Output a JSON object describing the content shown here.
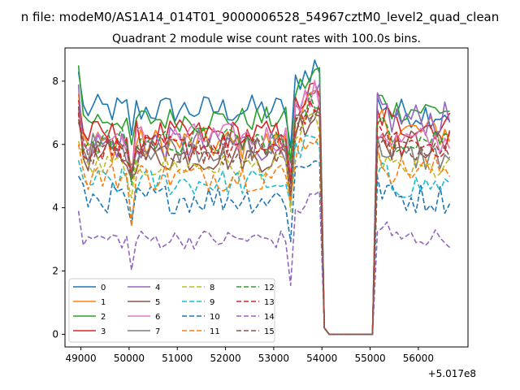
{
  "figure": {
    "suptitle": "n file: modeM0/AS1A14_014T01_9000006528_54967cztM0_level2_quad_clean",
    "title": "Quadrant 2 module wise count rates with 100.0s bins.",
    "offset_label": "+5.017e8"
  },
  "chart_data": {
    "type": "line",
    "title": "Quadrant 2 module wise count rates with 100.0s bins.",
    "xlabel": "",
    "ylabel": "",
    "x_offset": 501700000,
    "x_offset_label": "+5.017e8",
    "xlim": [
      48670,
      57030
    ],
    "ylim": [
      -0.4,
      9.05
    ],
    "xticks": [
      49000,
      50000,
      51000,
      52000,
      53000,
      54000,
      55000,
      56000
    ],
    "yticks": [
      0,
      2,
      4,
      6,
      8
    ],
    "grid": false,
    "legend_position": "lower-left",
    "legend_columns": 4,
    "x": {
      "start": 48950,
      "step": 100,
      "count": 78
    },
    "gap_values_x": [
      54050,
      54150,
      54250,
      54350,
      54450,
      54550,
      54650,
      54750,
      54850,
      54950,
      55050
    ],
    "series": [
      {
        "name": "0",
        "color": "#1f77b4",
        "dash": "solid",
        "start": 8.3,
        "mean": 7.1,
        "post_mean": 7.0,
        "noise": 0.22
      },
      {
        "name": "1",
        "color": "#ff7f0e",
        "dash": "solid",
        "start": 7.6,
        "mean": 6.0,
        "post_mean": 6.4,
        "noise": 0.25
      },
      {
        "name": "2",
        "color": "#2ca02c",
        "dash": "solid",
        "start": 8.5,
        "mean": 6.8,
        "post_mean": 7.1,
        "noise": 0.18
      },
      {
        "name": "3",
        "color": "#d62728",
        "dash": "solid",
        "start": 7.4,
        "mean": 6.3,
        "post_mean": 6.6,
        "noise": 0.22
      },
      {
        "name": "4",
        "color": "#9467bd",
        "dash": "solid",
        "start": 7.9,
        "mean": 6.0,
        "post_mean": 6.8,
        "noise": 0.25
      },
      {
        "name": "5",
        "color": "#8c564b",
        "dash": "solid",
        "start": 7.2,
        "mean": 5.6,
        "post_mean": 6.0,
        "noise": 0.22
      },
      {
        "name": "6",
        "color": "#e377c2",
        "dash": "solid",
        "start": 7.0,
        "mean": 6.2,
        "post_mean": 6.1,
        "noise": 0.22
      },
      {
        "name": "7",
        "color": "#7f7f7f",
        "dash": "solid",
        "start": 6.8,
        "mean": 5.9,
        "post_mean": 5.6,
        "noise": 0.22
      },
      {
        "name": "8",
        "color": "#bcbd22",
        "dash": "dashed",
        "start": 6.1,
        "mean": 5.3,
        "post_mean": 5.2,
        "noise": 0.18
      },
      {
        "name": "9",
        "color": "#17becf",
        "dash": "dashed",
        "start": 5.5,
        "mean": 4.8,
        "post_mean": 4.7,
        "noise": 0.2
      },
      {
        "name": "10",
        "color": "#1f77b4",
        "dash": "dashed",
        "start": 5.0,
        "mean": 4.3,
        "post_mean": 4.3,
        "noise": 0.22
      },
      {
        "name": "11",
        "color": "#ff7f0e",
        "dash": "dashed",
        "start": 6.0,
        "mean": 5.0,
        "post_mean": 5.2,
        "noise": 0.22
      },
      {
        "name": "12",
        "color": "#2ca02c",
        "dash": "dashed",
        "start": 7.0,
        "mean": 6.1,
        "post_mean": 6.2,
        "noise": 0.2
      },
      {
        "name": "13",
        "color": "#d62728",
        "dash": "dashed",
        "start": 7.0,
        "mean": 5.9,
        "post_mean": 6.0,
        "noise": 0.2
      },
      {
        "name": "14",
        "color": "#9467bd",
        "dash": "dashed",
        "start": 3.9,
        "mean": 3.0,
        "post_mean": 3.05,
        "noise": 0.14
      },
      {
        "name": "15",
        "color": "#8c564b",
        "dash": "dashed",
        "start": 6.7,
        "mean": 5.8,
        "post_mean": 5.7,
        "noise": 0.2
      }
    ]
  }
}
